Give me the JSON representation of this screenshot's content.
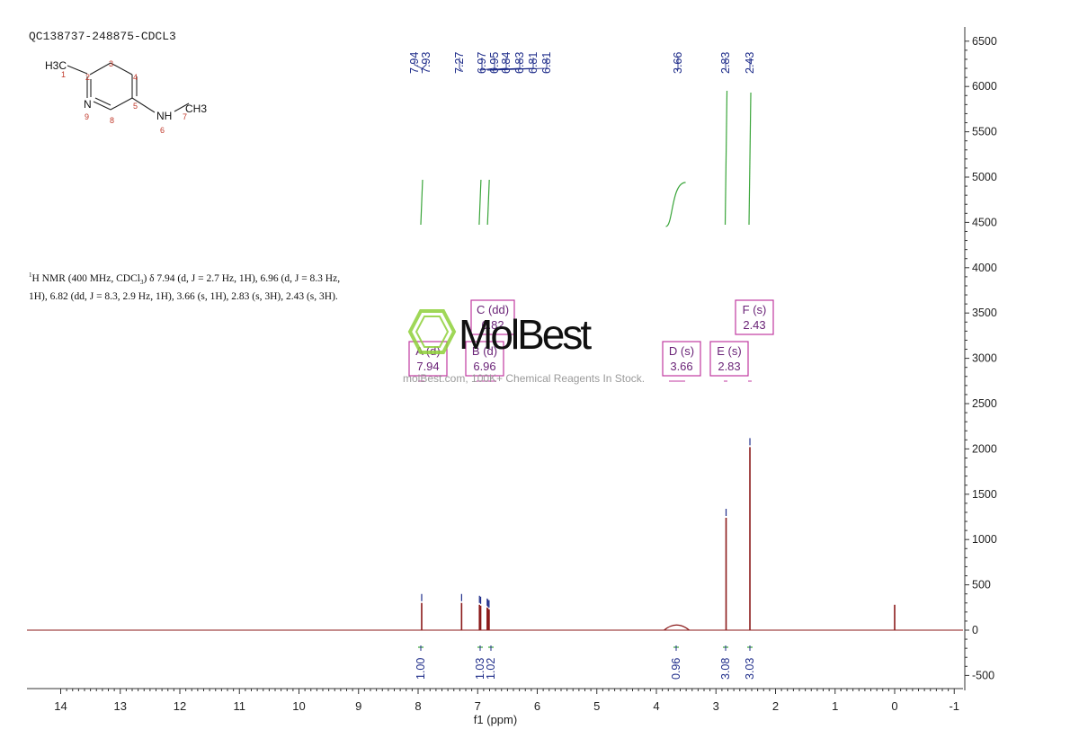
{
  "sample_id": "QC138737-248875-CDCL3",
  "nmr_description": {
    "part1": "H NMR (400 MHz, CDCl",
    "iso": "1",
    "sub3": "3",
    "part2": ") δ 7.94 (d, J = 2.7 Hz, 1H), 6.96 (d, J = 8.3 Hz, 1H), 6.82 (dd, J = 8.3, 2.9 Hz, 1H), 3.66 (s, 1H), 2.83 (s, 3H), 2.43 (s, 3H)."
  },
  "structure": {
    "labels": [
      "H3C",
      "N",
      "NH",
      "CH3"
    ],
    "atom_numbers": [
      "1",
      "2",
      "3",
      "4",
      "5",
      "6",
      "7",
      "8",
      "9"
    ]
  },
  "watermark": {
    "name": "MolBest",
    "text": "molBest.com, 100K+ Chemical Reagents In Stock."
  },
  "colors": {
    "spectrum": "#8b1a1a",
    "integral": "#3aa53a",
    "label": "#1f2d8a",
    "multiplet_box": "#c03aa0",
    "multiplet_text": "#6a2377",
    "axis": "#333333",
    "watermark_green": "#8fd13a"
  },
  "chart_data": {
    "type": "line",
    "xlabel": "f1 (ppm)",
    "x_ticks": [
      "14",
      "13",
      "12",
      "11",
      "10",
      "9",
      "8",
      "7",
      "6",
      "5",
      "4",
      "3",
      "2",
      "1",
      "0",
      "-1"
    ],
    "x_reversed": true,
    "xlim": [
      14.5,
      -1.1
    ],
    "y_ticks": [
      "6500",
      "6000",
      "5500",
      "5000",
      "4500",
      "4000",
      "3500",
      "3000",
      "2500",
      "2000",
      "1500",
      "1000",
      "500",
      "0",
      "-500"
    ],
    "ylim": [
      -650,
      6700
    ],
    "y_axis_position": "right",
    "peaks": [
      {
        "ppm": 7.94,
        "height": 300
      },
      {
        "ppm": 7.27,
        "height": 300
      },
      {
        "ppm": 6.97,
        "height": 280
      },
      {
        "ppm": 6.95,
        "height": 270
      },
      {
        "ppm": 6.84,
        "height": 250
      },
      {
        "ppm": 6.83,
        "height": 240
      },
      {
        "ppm": 6.81,
        "height": 230
      },
      {
        "ppm": 6.81,
        "height": 220
      },
      {
        "ppm": 3.66,
        "height": 55
      },
      {
        "ppm": 2.83,
        "height": 1240
      },
      {
        "ppm": 2.43,
        "height": 2020
      },
      {
        "ppm": 0.0,
        "height": 280
      }
    ],
    "peak_labels": [
      "7.94",
      "7.93",
      "7.27",
      "6.97",
      "6.95",
      "6.84",
      "6.83",
      "6.81",
      "6.81",
      "3.66",
      "2.83",
      "2.43"
    ],
    "integrals": [
      {
        "ppm": 7.94,
        "value": "1.00"
      },
      {
        "ppm": 6.96,
        "value": "1.03"
      },
      {
        "ppm": 6.82,
        "value": "1.02"
      },
      {
        "ppm": 3.66,
        "value": "0.96"
      },
      {
        "ppm": 2.83,
        "value": "3.08"
      },
      {
        "ppm": 2.43,
        "value": "3.03"
      }
    ],
    "multiplets": [
      {
        "label": "A (d)",
        "shift": "7.94"
      },
      {
        "label": "B (d)",
        "shift": "6.96"
      },
      {
        "label": "C (dd)",
        "shift": "6.82"
      },
      {
        "label": "D (s)",
        "shift": "3.66"
      },
      {
        "label": "E (s)",
        "shift": "2.83"
      },
      {
        "label": "F (s)",
        "shift": "2.43"
      }
    ]
  }
}
